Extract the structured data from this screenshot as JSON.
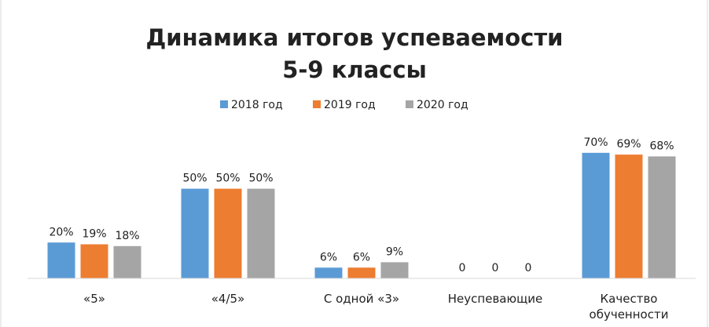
{
  "chart_data": {
    "type": "bar",
    "title": [
      "Динамика итогов успеваемости",
      "5-9 классы"
    ],
    "categories": [
      "«5»",
      "«4/5»",
      "С одной «3»",
      "Неуспевающие",
      "Качество обученности"
    ],
    "series": [
      {
        "name": "2018 год",
        "color": "#5b9bd5",
        "values": [
          20,
          50,
          6,
          0,
          70
        ],
        "value_labels": [
          "20%",
          "50%",
          "6%",
          "0",
          "70%"
        ]
      },
      {
        "name": "2019 год",
        "color": "#ed7d31",
        "values": [
          19,
          50,
          6,
          0,
          69
        ],
        "value_labels": [
          "19%",
          "50%",
          "6%",
          "0",
          "69%"
        ]
      },
      {
        "name": "2020 год",
        "color": "#a5a5a5",
        "values": [
          18,
          50,
          9,
          0,
          68
        ],
        "value_labels": [
          "18%",
          "50%",
          "9%",
          "0",
          "68%"
        ]
      }
    ],
    "ylim": [
      0,
      80
    ],
    "legend": "top"
  }
}
